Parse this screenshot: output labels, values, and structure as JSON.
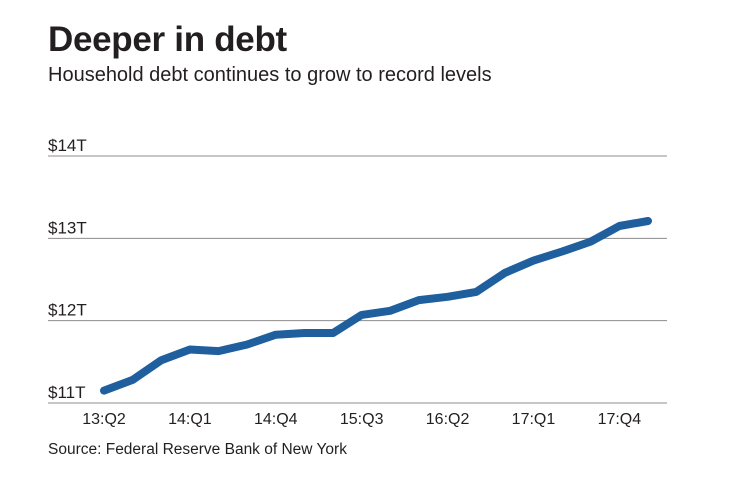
{
  "chart_data": {
    "type": "line",
    "title": "Deeper in debt",
    "subtitle": "Household debt continues to grow to record levels",
    "source": "Source: Federal Reserve Bank of New York",
    "xlabel": "",
    "ylabel": "",
    "ylim": [
      11,
      14
    ],
    "yticks": [
      {
        "value": 11,
        "label": "$11T"
      },
      {
        "value": 12,
        "label": "$12T"
      },
      {
        "value": 13,
        "label": "$13T"
      },
      {
        "value": 14,
        "label": "$14T"
      }
    ],
    "xticks": [
      "13:Q2",
      "14:Q1",
      "14:Q4",
      "15:Q3",
      "16:Q2",
      "17:Q1",
      "17:Q4"
    ],
    "x": [
      "13:Q2",
      "13:Q3",
      "13:Q4",
      "14:Q1",
      "14:Q2",
      "14:Q3",
      "14:Q4",
      "15:Q1",
      "15:Q2",
      "15:Q3",
      "15:Q4",
      "16:Q1",
      "16:Q2",
      "16:Q3",
      "16:Q4",
      "17:Q1",
      "17:Q2",
      "17:Q3",
      "17:Q4",
      "18:Q1"
    ],
    "series": [
      {
        "values": [
          11.15,
          11.28,
          11.52,
          11.65,
          11.63,
          11.71,
          11.83,
          11.85,
          11.85,
          12.07,
          12.12,
          12.25,
          12.29,
          12.35,
          12.58,
          12.73,
          12.84,
          12.96,
          13.15,
          13.21
        ],
        "color": "#1f5f9e"
      }
    ],
    "grid": true,
    "legend": "none"
  }
}
